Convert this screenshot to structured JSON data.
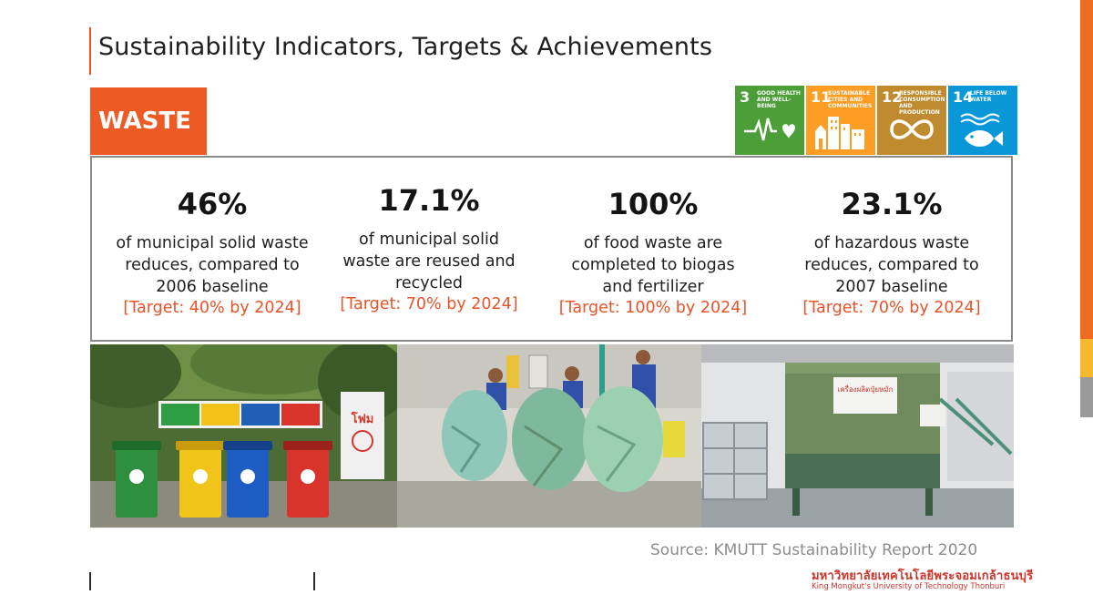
{
  "title": "Sustainability Indicators, Targets & Achievements",
  "section_label": "WASTE",
  "sdgs": [
    {
      "number": "3",
      "label": "GOOD HEALTH AND WELL-BEING",
      "color": "#4c9f38",
      "icon": "heartbeat-icon"
    },
    {
      "number": "11",
      "label": "SUSTAINABLE CITIES AND COMMUNITIES",
      "color": "#fd9d24",
      "icon": "city-buildings-icon"
    },
    {
      "number": "12",
      "label": "RESPONSIBLE CONSUMPTION AND PRODUCTION",
      "color": "#bf8b2e",
      "icon": "infinity-loop-icon"
    },
    {
      "number": "14",
      "label": "LIFE BELOW WATER",
      "color": "#0a97d9",
      "icon": "fish-waves-icon"
    }
  ],
  "stats": [
    {
      "value": "46%",
      "lines": [
        "of municipal solid waste",
        "reduces, compared to",
        "2006 baseline"
      ],
      "target": "[Target: 40% by 2024]"
    },
    {
      "value": "17.1%",
      "lines": [
        "of municipal solid",
        "waste are reused and",
        "recycled"
      ],
      "target": "[Target: 70% by 2024]"
    },
    {
      "value": "100%",
      "lines": [
        "of food waste are",
        "completed to biogas",
        "and fertilizer"
      ],
      "target": "[Target: 100% by 2024]"
    },
    {
      "value": "23.1%",
      "lines": [
        "of hazardous waste",
        "reduces, compared to",
        "2007 baseline"
      ],
      "target": "[Target: 70% by 2024]"
    }
  ],
  "photos": {
    "bins_sign_text": "โฟม",
    "tank_sign_text": "เครื่องผลิตปุ๋ยหมัก"
  },
  "source": "Source: KMUTT Sustainability Report 2020",
  "university": {
    "thai_name": "มหาวิทยาลัยเทคโนโลยีพระจอมเกล้าธนบุรี",
    "english_name": "King Mongkut's University of Technology Thonburi"
  },
  "colors": {
    "accent": "#ee5a24",
    "target_text": "#e8532a",
    "source_text": "#8c8c8c"
  }
}
